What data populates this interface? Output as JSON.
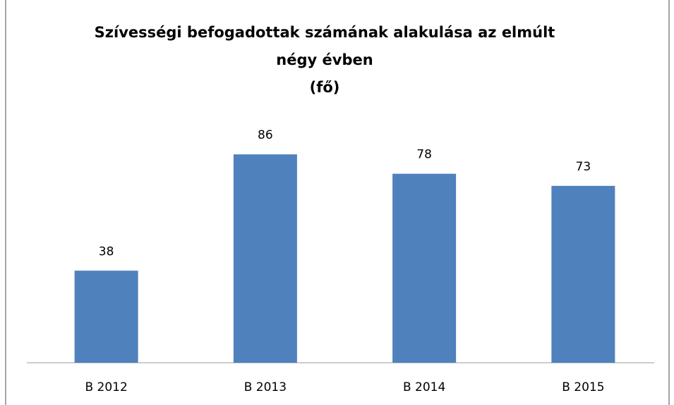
{
  "chart_data": {
    "type": "bar",
    "title": [
      "Szívességi befogadottak számának alakulása az elmúlt",
      "négy évben",
      "(fő)"
    ],
    "categories": [
      "B 2012",
      "B 2013",
      "B 2014",
      "B 2015"
    ],
    "values": [
      38,
      86,
      78,
      73
    ],
    "color": "#4f81bd",
    "ylim": [
      0,
      100
    ]
  }
}
